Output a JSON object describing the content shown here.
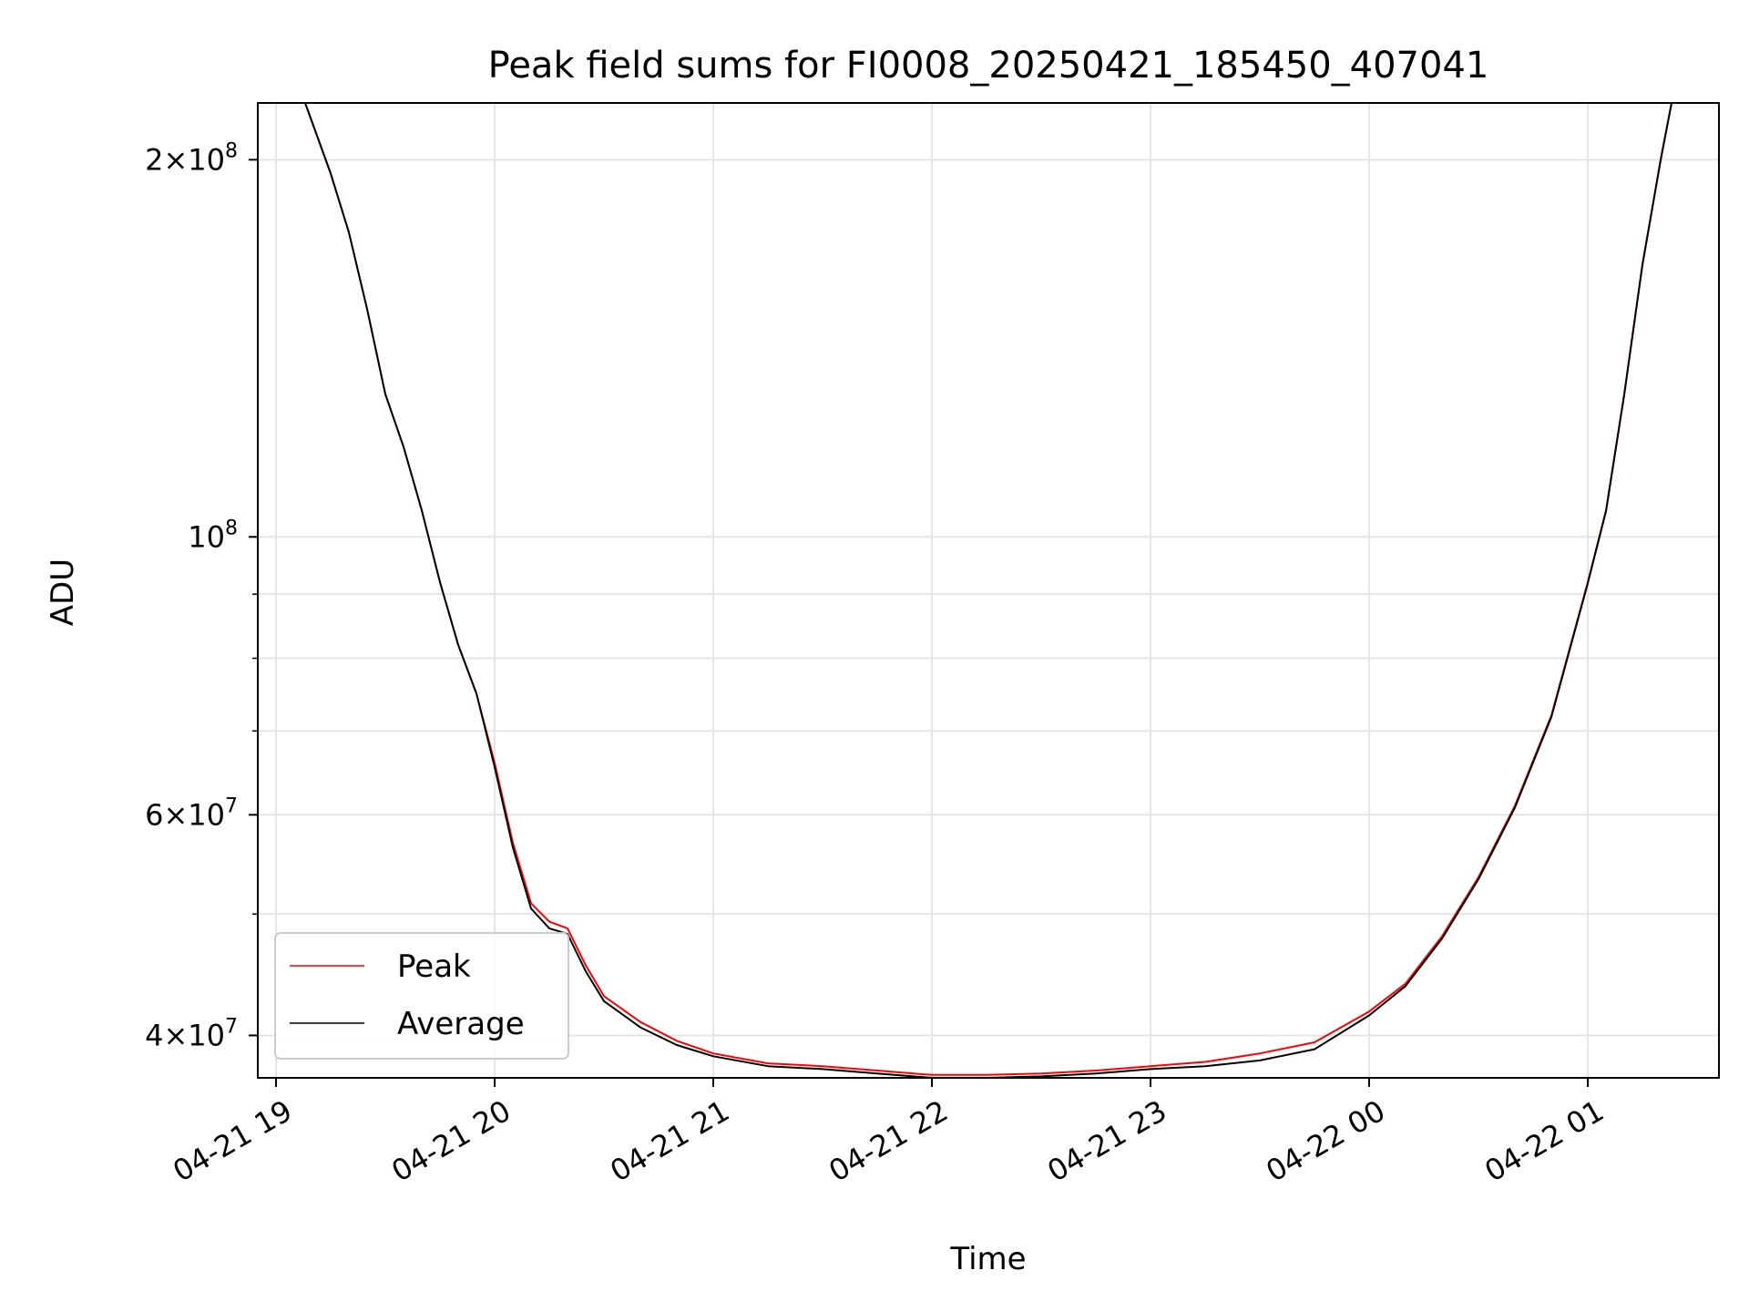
{
  "chart_data": {
    "type": "line",
    "title": "Peak field sums for FI0008_20250421_185450_407041",
    "xlabel": "Time",
    "ylabel": "ADU",
    "y_scale": "log",
    "grid": true,
    "legend_position": "lower-left",
    "xlim": [
      "2025-04-21 18:55",
      "2025-04-22 01:36"
    ],
    "ylim": [
      37000000,
      222000000
    ],
    "x_ticks": [
      {
        "time": "2025-04-21 19:00",
        "label": "04-21 19"
      },
      {
        "time": "2025-04-21 20:00",
        "label": "04-21 20"
      },
      {
        "time": "2025-04-21 21:00",
        "label": "04-21 21"
      },
      {
        "time": "2025-04-21 22:00",
        "label": "04-21 22"
      },
      {
        "time": "2025-04-21 23:00",
        "label": "04-21 23"
      },
      {
        "time": "2025-04-22 00:00",
        "label": "04-22 00"
      },
      {
        "time": "2025-04-22 01:00",
        "label": "04-22 01"
      }
    ],
    "y_ticks_major": [
      {
        "value": 40000000,
        "mantissa": "4",
        "exponent": "7"
      },
      {
        "value": 60000000,
        "mantissa": "6",
        "exponent": "7"
      },
      {
        "value": 100000000,
        "mantissa": "",
        "exponent": "8"
      },
      {
        "value": 200000000,
        "mantissa": "2",
        "exponent": "8"
      }
    ],
    "y_ticks_minor": [
      50000000,
      70000000,
      80000000,
      90000000
    ],
    "colors": {
      "peak": "#ff0000",
      "average": "#000000"
    },
    "series": [
      {
        "name": "Peak",
        "color": "#ff0000",
        "x": [
          "2025-04-21 19:08",
          "2025-04-21 19:15",
          "2025-04-21 19:20",
          "2025-04-21 19:25",
          "2025-04-21 19:30",
          "2025-04-21 19:35",
          "2025-04-21 19:40",
          "2025-04-21 19:45",
          "2025-04-21 19:50",
          "2025-04-21 19:55",
          "2025-04-21 20:00",
          "2025-04-21 20:05",
          "2025-04-21 20:10",
          "2025-04-21 20:15",
          "2025-04-21 20:20",
          "2025-04-21 20:25",
          "2025-04-21 20:30",
          "2025-04-21 20:40",
          "2025-04-21 20:50",
          "2025-04-21 21:00",
          "2025-04-21 21:15",
          "2025-04-21 21:30",
          "2025-04-21 21:45",
          "2025-04-21 22:00",
          "2025-04-21 22:15",
          "2025-04-21 22:30",
          "2025-04-21 22:45",
          "2025-04-21 23:00",
          "2025-04-21 23:15",
          "2025-04-21 23:30",
          "2025-04-21 23:45",
          "2025-04-22 00:00",
          "2025-04-22 00:10",
          "2025-04-22 00:20",
          "2025-04-22 00:30",
          "2025-04-22 00:40",
          "2025-04-22 00:50",
          "2025-04-22 01:00",
          "2025-04-22 01:05",
          "2025-04-22 01:10",
          "2025-04-22 01:15",
          "2025-04-22 01:20",
          "2025-04-22 01:23"
        ],
        "y": [
          222000000,
          195000000,
          175000000,
          152000000,
          130000000,
          118000000,
          105000000,
          92000000,
          82000000,
          75000000,
          66000000,
          57000000,
          51000000,
          49300000,
          48700000,
          45500000,
          43000000,
          41000000,
          39600000,
          38700000,
          38000000,
          37800000,
          37500000,
          37200000,
          37200000,
          37300000,
          37500000,
          37800000,
          38100000,
          38700000,
          39500000,
          41800000,
          44000000,
          48000000,
          53500000,
          61000000,
          72000000,
          92000000,
          105000000,
          130000000,
          165000000,
          200000000,
          222000000
        ]
      },
      {
        "name": "Average",
        "color": "#000000",
        "x": [
          "2025-04-21 19:08",
          "2025-04-21 19:15",
          "2025-04-21 19:20",
          "2025-04-21 19:25",
          "2025-04-21 19:30",
          "2025-04-21 19:35",
          "2025-04-21 19:40",
          "2025-04-21 19:45",
          "2025-04-21 19:50",
          "2025-04-21 19:55",
          "2025-04-21 20:00",
          "2025-04-21 20:05",
          "2025-04-21 20:10",
          "2025-04-21 20:15",
          "2025-04-21 20:20",
          "2025-04-21 20:25",
          "2025-04-21 20:30",
          "2025-04-21 20:40",
          "2025-04-21 20:50",
          "2025-04-21 21:00",
          "2025-04-21 21:15",
          "2025-04-21 21:30",
          "2025-04-21 21:45",
          "2025-04-21 22:00",
          "2025-04-21 22:15",
          "2025-04-21 22:30",
          "2025-04-21 22:45",
          "2025-04-21 23:00",
          "2025-04-21 23:15",
          "2025-04-21 23:30",
          "2025-04-21 23:45",
          "2025-04-22 00:00",
          "2025-04-22 00:10",
          "2025-04-22 00:20",
          "2025-04-22 00:30",
          "2025-04-22 00:40",
          "2025-04-22 00:50",
          "2025-04-22 01:00",
          "2025-04-22 01:05",
          "2025-04-22 01:10",
          "2025-04-22 01:15",
          "2025-04-22 01:20",
          "2025-04-22 01:23"
        ],
        "y": [
          222000000,
          195000000,
          175000000,
          152000000,
          130000000,
          118000000,
          105000000,
          92000000,
          82000000,
          75000000,
          65500000,
          56500000,
          50500000,
          48700000,
          48200000,
          45000000,
          42600000,
          40600000,
          39300000,
          38500000,
          37800000,
          37600000,
          37300000,
          37000000,
          37000000,
          37100000,
          37300000,
          37600000,
          37800000,
          38200000,
          39000000,
          41500000,
          43800000,
          47800000,
          53300000,
          60800000,
          71800000,
          91800000,
          104800000,
          129800000,
          164800000,
          199800000,
          222000000
        ]
      }
    ]
  }
}
